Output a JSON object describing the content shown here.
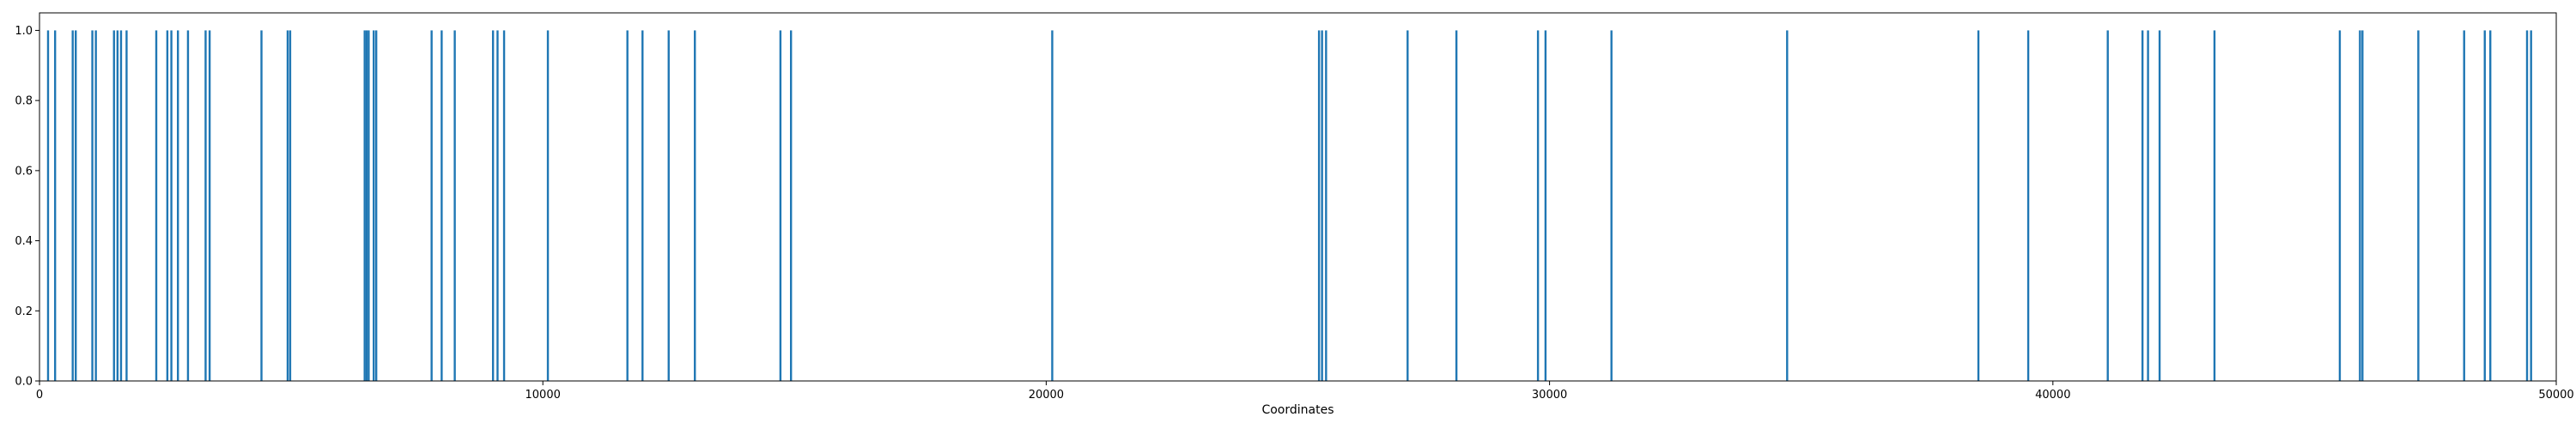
{
  "chart_data": {
    "type": "bar",
    "title": "",
    "xlabel": "Coordinates",
    "ylabel": "",
    "xlim": [
      0,
      50000
    ],
    "ylim": [
      0,
      1.05
    ],
    "x_ticks": [
      0,
      10000,
      20000,
      30000,
      40000,
      50000
    ],
    "y_ticks": [
      0.0,
      0.2,
      0.4,
      0.6,
      0.8,
      1.0
    ],
    "grid": false,
    "legend": "none",
    "bar_color": "#1f77b4",
    "series": [
      {
        "x": [
          170,
          310,
          660,
          720,
          1050,
          1120,
          1480,
          1550,
          1620,
          1730,
          2320,
          2540,
          2620,
          2750,
          2950,
          3300,
          3380,
          4410,
          4930,
          4980,
          6460,
          6500,
          6540,
          6640,
          6690,
          7790,
          7990,
          8250,
          9010,
          9100,
          9230,
          10100,
          11680,
          11980,
          12500,
          13020,
          14720,
          14930,
          20120,
          25420,
          25480,
          25560,
          27180,
          28150,
          29770,
          29920,
          31230,
          34720,
          38520,
          39510,
          41090,
          41780,
          41890,
          42120,
          43210,
          45700,
          46100,
          46150,
          47260,
          48170,
          48580,
          48690,
          49420,
          49500
        ],
        "values": [
          1,
          1,
          1,
          1,
          1,
          1,
          1,
          1,
          1,
          1,
          1,
          1,
          1,
          1,
          1,
          1,
          1,
          1,
          1,
          1,
          1,
          1,
          1,
          1,
          1,
          1,
          1,
          1,
          1,
          1,
          1,
          1,
          1,
          1,
          1,
          1,
          1,
          1,
          1,
          1,
          1,
          1,
          1,
          1,
          1,
          1,
          1,
          1,
          1,
          1,
          1,
          1,
          1,
          1,
          1,
          1,
          1,
          1,
          1,
          1,
          1,
          1,
          1,
          1
        ]
      }
    ]
  }
}
